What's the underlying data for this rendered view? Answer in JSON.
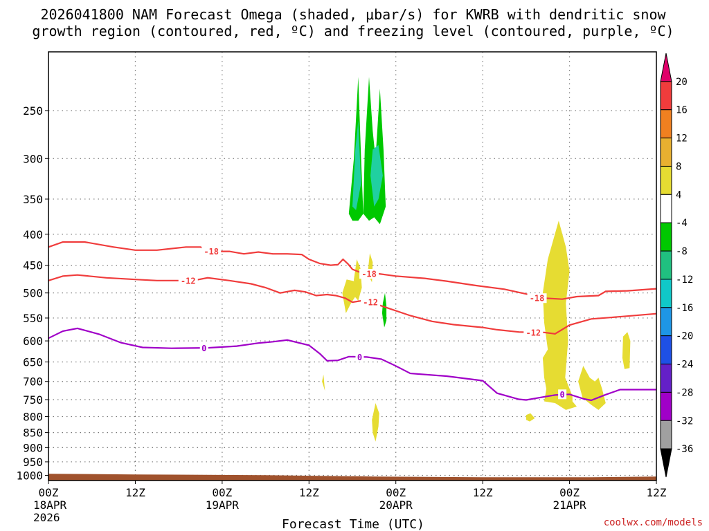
{
  "chart_data": {
    "type": "heatmap",
    "title_lines": [
      "2026041800 NAM Forecast Omega (shaded, μbar/s) for KWRB with dendritic snow",
      "growth region (contoured, red, ºC) and freezing level (contoured, purple, ºC)"
    ],
    "xlabel": "Forecast Time (UTC)",
    "credit": "coolwx.com/models",
    "x_range_hours": [
      0,
      84
    ],
    "y_range_hpa": [
      200,
      1020
    ],
    "y_ticks": [
      250,
      300,
      350,
      400,
      450,
      500,
      550,
      600,
      650,
      700,
      750,
      800,
      850,
      900,
      950,
      1000
    ],
    "x_ticks": [
      {
        "hour": 0,
        "line1": "00Z",
        "line2": "18APR",
        "line3": "2026"
      },
      {
        "hour": 12,
        "line1": "12Z",
        "line2": "",
        "line3": ""
      },
      {
        "hour": 24,
        "line1": "00Z",
        "line2": "19APR",
        "line3": ""
      },
      {
        "hour": 36,
        "line1": "12Z",
        "line2": "",
        "line3": ""
      },
      {
        "hour": 48,
        "line1": "00Z",
        "line2": "20APR",
        "line3": ""
      },
      {
        "hour": 60,
        "line1": "12Z",
        "line2": "",
        "line3": ""
      },
      {
        "hour": 72,
        "line1": "00Z",
        "line2": "21APR",
        "line3": ""
      },
      {
        "hour": 84,
        "line1": "12Z",
        "line2": "",
        "line3": ""
      }
    ],
    "colorbar": {
      "labels": [
        "20",
        "16",
        "12",
        "8",
        "4",
        "-4",
        "-8",
        "-12",
        "-16",
        "-20",
        "-24",
        "-28",
        "-32",
        "-36"
      ],
      "colors": [
        "#e0006a",
        "#f03c3c",
        "#f08020",
        "#e8b030",
        "#e6dc32",
        "#ffffff",
        "#00c800",
        "#20c080",
        "#10c8c8",
        "#1e96e6",
        "#1e50e6",
        "#6420c8",
        "#a000c8",
        "#a0a0a0",
        "#000000"
      ]
    },
    "omega_colors": {
      "pos4": "#e6dc32",
      "neg4": "#00c800",
      "neg8": "#20d0a0"
    },
    "contour_colors": {
      "snow": "#f03c3c",
      "freezing": "#a000c8",
      "ground": "#a0522d"
    },
    "contours": [
      {
        "label": "-18",
        "label_hour": 22.5,
        "label_pres": 427,
        "points": [
          [
            0,
            420
          ],
          [
            2,
            412
          ],
          [
            5,
            412
          ],
          [
            9,
            420
          ],
          [
            12,
            425
          ],
          [
            15,
            425
          ],
          [
            19,
            420
          ],
          [
            21,
            420
          ],
          [
            22.5,
            427
          ],
          [
            25,
            427
          ],
          [
            27,
            431
          ],
          [
            29,
            428
          ],
          [
            31,
            431
          ],
          [
            33,
            431
          ],
          [
            35,
            432
          ],
          [
            36,
            440
          ],
          [
            37.5,
            447
          ],
          [
            39,
            450
          ],
          [
            40,
            449
          ],
          [
            40.7,
            440
          ],
          [
            41.4,
            448
          ],
          [
            42,
            457
          ],
          [
            43,
            462
          ],
          [
            44.5,
            463
          ],
          [
            48,
            469
          ],
          [
            52,
            473
          ],
          [
            55,
            478
          ],
          [
            59,
            486
          ],
          [
            63,
            493
          ],
          [
            66,
            502
          ],
          [
            68.5,
            510
          ],
          [
            71,
            512
          ],
          [
            73,
            507
          ],
          [
            76,
            505
          ],
          [
            77,
            497
          ],
          [
            80,
            496
          ],
          [
            84,
            492
          ]
        ]
      },
      {
        "label": "-18",
        "label_hour": 44.3,
        "label_pres": 465,
        "points": []
      },
      {
        "label": "-18",
        "label_hour": 67.5,
        "label_pres": 510,
        "points": []
      },
      {
        "label": "-12",
        "label_hour": 19.3,
        "label_pres": 477,
        "points": [
          [
            0,
            477
          ],
          [
            2,
            469
          ],
          [
            4,
            467
          ],
          [
            8,
            472
          ],
          [
            12,
            475
          ],
          [
            15,
            477
          ],
          [
            18,
            477
          ],
          [
            20,
            477
          ],
          [
            22,
            472
          ],
          [
            25,
            477
          ],
          [
            28,
            483
          ],
          [
            30,
            490
          ],
          [
            32,
            500
          ],
          [
            34,
            495
          ],
          [
            35.5,
            498
          ],
          [
            37,
            505
          ],
          [
            38.5,
            503
          ],
          [
            39.7,
            505
          ],
          [
            41,
            510
          ],
          [
            42,
            518
          ],
          [
            43.3,
            515
          ],
          [
            44.5,
            518
          ],
          [
            47,
            530
          ],
          [
            50,
            545
          ],
          [
            53,
            557
          ],
          [
            56,
            564
          ],
          [
            60,
            570
          ],
          [
            62,
            575
          ],
          [
            65,
            580
          ],
          [
            67,
            581
          ],
          [
            68.5,
            581
          ],
          [
            70,
            584
          ],
          [
            72,
            565
          ],
          [
            75,
            552
          ],
          [
            77.5,
            549
          ],
          [
            80,
            546
          ],
          [
            84,
            541
          ]
        ]
      },
      {
        "label": "-12",
        "label_hour": 44.5,
        "label_pres": 518,
        "points": []
      },
      {
        "label": "-12",
        "label_hour": 67.0,
        "label_pres": 581,
        "points": []
      },
      {
        "label": "0",
        "label_hour": 21.5,
        "label_pres": 617,
        "points": [
          [
            0,
            594
          ],
          [
            2,
            578
          ],
          [
            4,
            572
          ],
          [
            7,
            585
          ],
          [
            10,
            604
          ],
          [
            13,
            615
          ],
          [
            17,
            617
          ],
          [
            22,
            616
          ],
          [
            26,
            612
          ],
          [
            29,
            605
          ],
          [
            31,
            602
          ],
          [
            33,
            598
          ],
          [
            36,
            610
          ],
          [
            37.5,
            630
          ],
          [
            38.5,
            647
          ],
          [
            40,
            646
          ],
          [
            41.5,
            637
          ],
          [
            44,
            638
          ],
          [
            46,
            643
          ],
          [
            48,
            660
          ],
          [
            50,
            679
          ],
          [
            55,
            686
          ],
          [
            60,
            698
          ],
          [
            62,
            732
          ],
          [
            65,
            749
          ],
          [
            66,
            751
          ],
          [
            68.5,
            742
          ],
          [
            70,
            737
          ],
          [
            72,
            735
          ],
          [
            74,
            748
          ],
          [
            75,
            752
          ],
          [
            77,
            736
          ],
          [
            79,
            722
          ],
          [
            84,
            722
          ]
        ]
      },
      {
        "label": "0",
        "label_hour": 43.0,
        "label_pres": 638,
        "points": []
      },
      {
        "label": "0",
        "label_hour": 71.0,
        "label_pres": 735,
        "points": []
      }
    ],
    "shaded_regions": [
      {
        "value": "-4",
        "points": [
          [
            41.5,
            370
          ],
          [
            42.2,
            300
          ],
          [
            42.8,
            220
          ],
          [
            43.2,
            300
          ],
          [
            43.5,
            370
          ],
          [
            42.8,
            380
          ],
          [
            42.0,
            380
          ]
        ]
      },
      {
        "value": "-4",
        "points": [
          [
            43.5,
            370
          ],
          [
            43.7,
            290
          ],
          [
            44.3,
            220
          ],
          [
            44.8,
            270
          ],
          [
            45.2,
            300
          ],
          [
            45.8,
            230
          ],
          [
            46.3,
            290
          ],
          [
            46.6,
            360
          ],
          [
            45.8,
            385
          ],
          [
            45.0,
            375
          ],
          [
            44.3,
            380
          ]
        ]
      },
      {
        "value": "-8",
        "points": [
          [
            42.0,
            360
          ],
          [
            42.4,
            290
          ],
          [
            42.8,
            260
          ],
          [
            43.2,
            330
          ],
          [
            42.5,
            365
          ]
        ]
      },
      {
        "value": "-8",
        "points": [
          [
            44.5,
            320
          ],
          [
            44.8,
            290
          ],
          [
            45.6,
            285
          ],
          [
            46.2,
            320
          ],
          [
            45.6,
            350
          ],
          [
            45.0,
            360
          ]
        ]
      },
      {
        "value": "-4",
        "points": [
          [
            46.2,
            520
          ],
          [
            46.5,
            500
          ],
          [
            46.7,
            525
          ],
          [
            46.7,
            555
          ],
          [
            46.4,
            570
          ],
          [
            46.1,
            540
          ]
        ]
      },
      {
        "value": "4",
        "points": [
          [
            40.6,
            500
          ],
          [
            41.2,
            475
          ],
          [
            42.2,
            478
          ],
          [
            42.5,
            505
          ],
          [
            41.8,
            520
          ],
          [
            41.1,
            540
          ]
        ]
      },
      {
        "value": "4",
        "points": [
          [
            42.2,
            475
          ],
          [
            42.6,
            440
          ],
          [
            43.1,
            455
          ],
          [
            43.3,
            490
          ],
          [
            42.8,
            515
          ],
          [
            42.2,
            505
          ]
        ]
      },
      {
        "value": "4",
        "points": [
          [
            44.1,
            465
          ],
          [
            44.4,
            430
          ],
          [
            44.8,
            445
          ],
          [
            44.7,
            480
          ]
        ]
      },
      {
        "value": "4",
        "points": [
          [
            37.8,
            700
          ],
          [
            38.0,
            682
          ],
          [
            38.2,
            725
          ]
        ]
      },
      {
        "value": "4",
        "points": [
          [
            44.7,
            810
          ],
          [
            45.2,
            760
          ],
          [
            45.7,
            790
          ],
          [
            45.6,
            830
          ],
          [
            45.2,
            880
          ],
          [
            44.8,
            850
          ]
        ]
      },
      {
        "value": "4",
        "points": [
          [
            68.5,
            560
          ],
          [
            68.3,
            500
          ],
          [
            69.0,
            440
          ],
          [
            70.5,
            380
          ],
          [
            71.5,
            420
          ],
          [
            72.0,
            460
          ],
          [
            71.5,
            520
          ],
          [
            71.8,
            600
          ],
          [
            71.4,
            690
          ],
          [
            72.4,
            740
          ],
          [
            72.4,
            755
          ],
          [
            73.0,
            770
          ],
          [
            71.5,
            780
          ],
          [
            70.0,
            760
          ],
          [
            68.5,
            755
          ],
          [
            68.8,
            720
          ],
          [
            68.5,
            690
          ],
          [
            68.3,
            640
          ],
          [
            69.0,
            620
          ]
        ]
      },
      {
        "value": "4",
        "points": [
          [
            66.0,
            795
          ],
          [
            66.6,
            790
          ],
          [
            67.2,
            805
          ],
          [
            66.5,
            815
          ],
          [
            66.0,
            810
          ]
        ]
      },
      {
        "value": "4",
        "points": [
          [
            73.2,
            700
          ],
          [
            73.9,
            660
          ],
          [
            74.8,
            690
          ],
          [
            75.5,
            700
          ],
          [
            76.0,
            690
          ],
          [
            76.5,
            720
          ],
          [
            77.0,
            760
          ],
          [
            76.0,
            780
          ],
          [
            75.0,
            765
          ],
          [
            73.8,
            745
          ]
        ]
      },
      {
        "value": "4",
        "points": [
          [
            79.3,
            640
          ],
          [
            79.4,
            590
          ],
          [
            80.0,
            580
          ],
          [
            80.4,
            600
          ],
          [
            80.3,
            665
          ],
          [
            79.6,
            668
          ]
        ]
      }
    ]
  }
}
